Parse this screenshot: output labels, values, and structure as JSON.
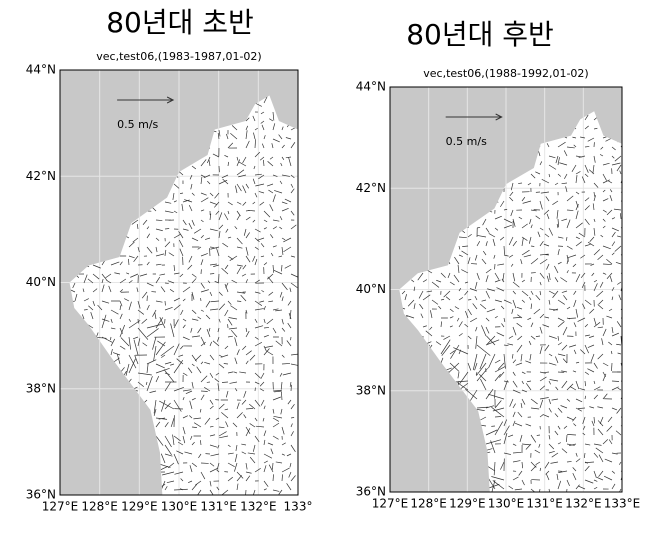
{
  "panels": [
    {
      "title": "80년대 초반",
      "subtitle": "vec,test06,(1983-1987,01-02)",
      "scale_label": "0.5 m/s",
      "yticks": [
        "44°N",
        "42°N",
        "40°N",
        "38°N",
        "36°N"
      ],
      "xticks": [
        "127°E",
        "128°E",
        "129°E",
        "130°E",
        "131°E",
        "132°E",
        "133°"
      ]
    },
    {
      "title": "80년대 후반",
      "subtitle": "vec,test06,(1988-1992,01-02)",
      "scale_label": "0.5 m/s",
      "yticks": [
        "44°N",
        "42°N",
        "40°N",
        "38°N",
        "36°N"
      ],
      "xticks": [
        "127°E",
        "128°E",
        "129°E",
        "130°E",
        "131°E",
        "132°E",
        "133°E"
      ]
    }
  ]
}
